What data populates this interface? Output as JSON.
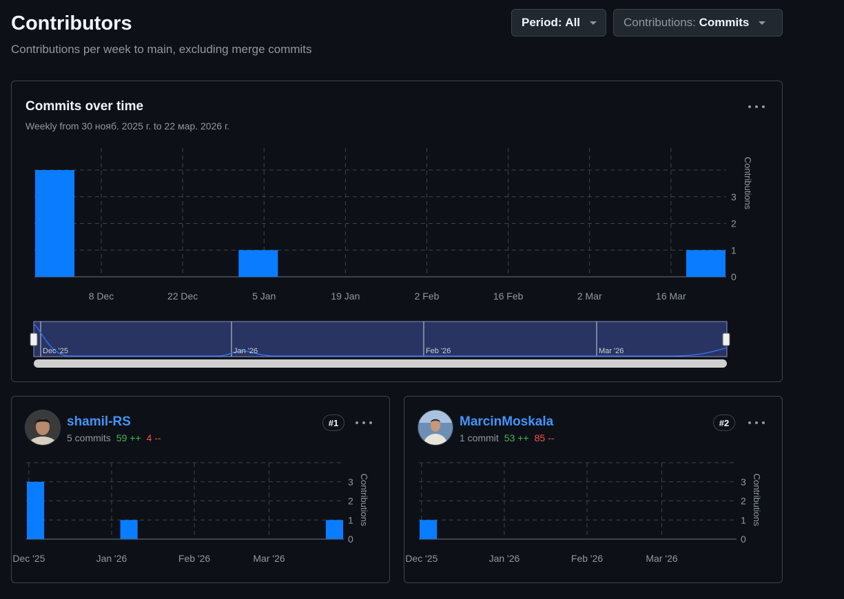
{
  "header": {
    "title": "Contributors",
    "subtitle": "Contributions per week to main, excluding merge commits"
  },
  "filters": {
    "period_label": "Period:",
    "period_value": "All",
    "contrib_label": "Contributions:",
    "contrib_value": "Commits"
  },
  "main_chart": {
    "title": "Commits over time",
    "subtitle": "Weekly from 30 нояб. 2025 г. to 22 мар. 2026 г.",
    "axis_title": "Contributions",
    "navigator_labels": [
      "Dec '25",
      "Jan '26",
      "Feb '26",
      "Mar '26"
    ]
  },
  "contributors": [
    {
      "name": "shamil-RS",
      "commits": "5 commits",
      "additions": "59 ++",
      "deletions": "4 --",
      "rank": "#1",
      "axis_title": "Contributions"
    },
    {
      "name": "MarcinMoskala",
      "commits": "1 commit",
      "additions": "53 ++",
      "deletions": "85 --",
      "rank": "#2",
      "axis_title": "Contributions"
    }
  ],
  "colors": {
    "bar": "#0a7cff",
    "grid": "#3d444d",
    "add": "#3fb950",
    "del": "#f85149",
    "link": "#4493f8"
  },
  "chart_data": [
    {
      "type": "bar",
      "x": [
        "2025-11-30",
        "2025-12-07",
        "2025-12-14",
        "2025-12-21",
        "2025-12-28",
        "2026-01-04",
        "2026-01-11",
        "2026-01-18",
        "2026-01-25",
        "2026-02-01",
        "2026-02-08",
        "2026-02-15",
        "2026-02-22",
        "2026-03-01",
        "2026-03-08",
        "2026-03-15",
        "2026-03-22"
      ],
      "values": [
        4,
        0,
        0,
        0,
        0,
        1,
        0,
        0,
        0,
        0,
        0,
        0,
        0,
        0,
        0,
        0,
        1
      ],
      "tick_labels": [
        "8 Dec",
        "22 Dec",
        "5 Jan",
        "19 Jan",
        "2 Feb",
        "16 Feb",
        "2 Mar",
        "16 Mar"
      ],
      "y_ticks": [
        0,
        1,
        2,
        3
      ],
      "ylabel": "Contributions",
      "ylim": [
        0,
        4
      ]
    },
    {
      "type": "bar",
      "name": "shamil-RS",
      "x": [
        "2025-11-30",
        "2025-12-07",
        "2025-12-14",
        "2025-12-21",
        "2025-12-28",
        "2026-01-04",
        "2026-01-11",
        "2026-01-18",
        "2026-01-25",
        "2026-02-01",
        "2026-02-08",
        "2026-02-15",
        "2026-02-22",
        "2026-03-01",
        "2026-03-08",
        "2026-03-15",
        "2026-03-22"
      ],
      "values": [
        3,
        0,
        0,
        0,
        0,
        1,
        0,
        0,
        0,
        0,
        0,
        0,
        0,
        0,
        0,
        0,
        1
      ],
      "tick_labels": [
        "Dec '25",
        "Jan '26",
        "Feb '26",
        "Mar '26"
      ],
      "y_ticks": [
        0,
        1,
        2,
        3
      ],
      "ylabel": "Contributions",
      "ylim": [
        0,
        4
      ]
    },
    {
      "type": "bar",
      "name": "MarcinMoskala",
      "x": [
        "2025-11-30",
        "2025-12-07",
        "2025-12-14",
        "2025-12-21",
        "2025-12-28",
        "2026-01-04",
        "2026-01-11",
        "2026-01-18",
        "2026-01-25",
        "2026-02-01",
        "2026-02-08",
        "2026-02-15",
        "2026-02-22",
        "2026-03-01",
        "2026-03-08",
        "2026-03-15",
        "2026-03-22"
      ],
      "values": [
        1,
        0,
        0,
        0,
        0,
        0,
        0,
        0,
        0,
        0,
        0,
        0,
        0,
        0,
        0,
        0,
        0
      ],
      "tick_labels": [
        "Dec '25",
        "Jan '26",
        "Feb '26",
        "Mar '26"
      ],
      "y_ticks": [
        0,
        1,
        2,
        3
      ],
      "ylabel": "Contributions",
      "ylim": [
        0,
        4
      ]
    }
  ]
}
